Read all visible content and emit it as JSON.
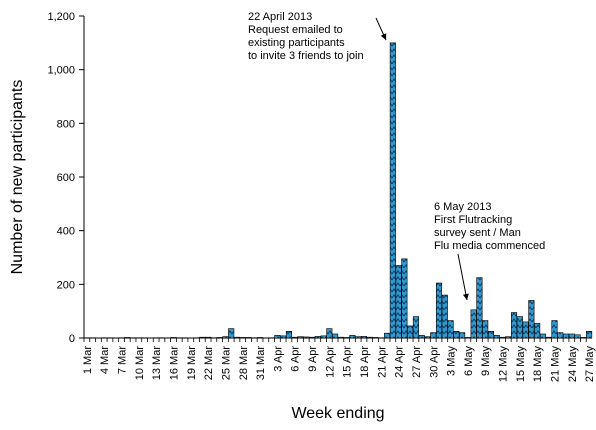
{
  "chart_data": {
    "type": "bar",
    "xlabel": "Week ending",
    "ylabel": "Number of new participants",
    "ylim": [
      0,
      1200
    ],
    "yticks": [
      0,
      200,
      400,
      600,
      800,
      1000,
      1200
    ],
    "ytick_labels": [
      "0",
      "200",
      "400",
      "600",
      "800",
      "1,000",
      "1,200"
    ],
    "categories": [
      "1 Mar",
      "2 Mar",
      "3 Mar",
      "4 Mar",
      "5 Mar",
      "6 Mar",
      "7 Mar",
      "8 Mar",
      "9 Mar",
      "10 Mar",
      "11 Mar",
      "12 Mar",
      "13 Mar",
      "14 Mar",
      "15 Mar",
      "16 Mar",
      "17 Mar",
      "18 Mar",
      "19 Mar",
      "20 Mar",
      "21 Mar",
      "22 Mar",
      "23 Mar",
      "24 Mar",
      "25 Mar",
      "26 Mar",
      "27 Mar",
      "28 Mar",
      "29 Mar",
      "30 Mar",
      "31 Mar",
      "1 Apr",
      "2 Apr",
      "3 Apr",
      "4 Apr",
      "5 Apr",
      "6 Apr",
      "7 Apr",
      "8 Apr",
      "9 Apr",
      "10 Apr",
      "11 Apr",
      "12 Apr",
      "13 Apr",
      "14 Apr",
      "15 Apr",
      "16 Apr",
      "17 Apr",
      "18 Apr",
      "19 Apr",
      "20 Apr",
      "21 Apr",
      "22 Apr",
      "23 Apr",
      "24 Apr",
      "25 Apr",
      "26 Apr",
      "27 Apr",
      "28 Apr",
      "29 Apr",
      "30 Apr",
      "1 May",
      "2 May",
      "3 May",
      "4 May",
      "5 May",
      "6 May",
      "7 May",
      "8 May",
      "9 May",
      "10 May",
      "11 May",
      "12 May",
      "13 May",
      "14 May",
      "15 May",
      "16 May",
      "17 May",
      "18 May",
      "19 May",
      "20 May",
      "21 May",
      "22 May",
      "23 May",
      "24 May",
      "25 May",
      "26 May",
      "27 May"
    ],
    "x_tick_labels": [
      "1 Mar",
      "4 Mar",
      "7 Mar",
      "10 Mar",
      "13 Mar",
      "16 Mar",
      "19 Mar",
      "22 Mar",
      "25 Mar",
      "28 Mar",
      "31 Mar",
      "3 Apr",
      "6 Apr",
      "9 Apr",
      "12 Apr",
      "15 Apr",
      "18 Apr",
      "21 Apr",
      "24 Apr",
      "27 Apr",
      "30 Apr",
      "3 May",
      "6 May",
      "9 May",
      "12 May",
      "15 May",
      "18 May",
      "21 May",
      "24 May",
      "27 May"
    ],
    "values": [
      1,
      1,
      0,
      1,
      1,
      0,
      1,
      2,
      1,
      1,
      1,
      0,
      1,
      1,
      0,
      2,
      1,
      1,
      0,
      1,
      3,
      3,
      1,
      2,
      5,
      35,
      3,
      2,
      2,
      1,
      2,
      0,
      1,
      10,
      8,
      25,
      3,
      5,
      4,
      3,
      6,
      8,
      35,
      15,
      3,
      2,
      10,
      5,
      6,
      3,
      2,
      1,
      18,
      1100,
      270,
      295,
      45,
      80,
      10,
      5,
      20,
      205,
      160,
      65,
      25,
      20,
      2,
      105,
      225,
      65,
      25,
      10,
      3,
      5,
      95,
      80,
      60,
      140,
      55,
      15,
      3,
      65,
      20,
      15,
      15,
      12,
      2,
      25
    ],
    "bar_color": "#3399cc",
    "annotations": [
      {
        "lines": [
          "22 April 2013",
          "Request emailed to",
          "existing participants",
          "to invite 3 friends to join"
        ],
        "target_category": "22 Apr"
      },
      {
        "lines": [
          "6 May 2013",
          "First Flutracking",
          "survey sent / Man",
          "Flu media commenced"
        ],
        "target_category": "6 May"
      }
    ]
  }
}
